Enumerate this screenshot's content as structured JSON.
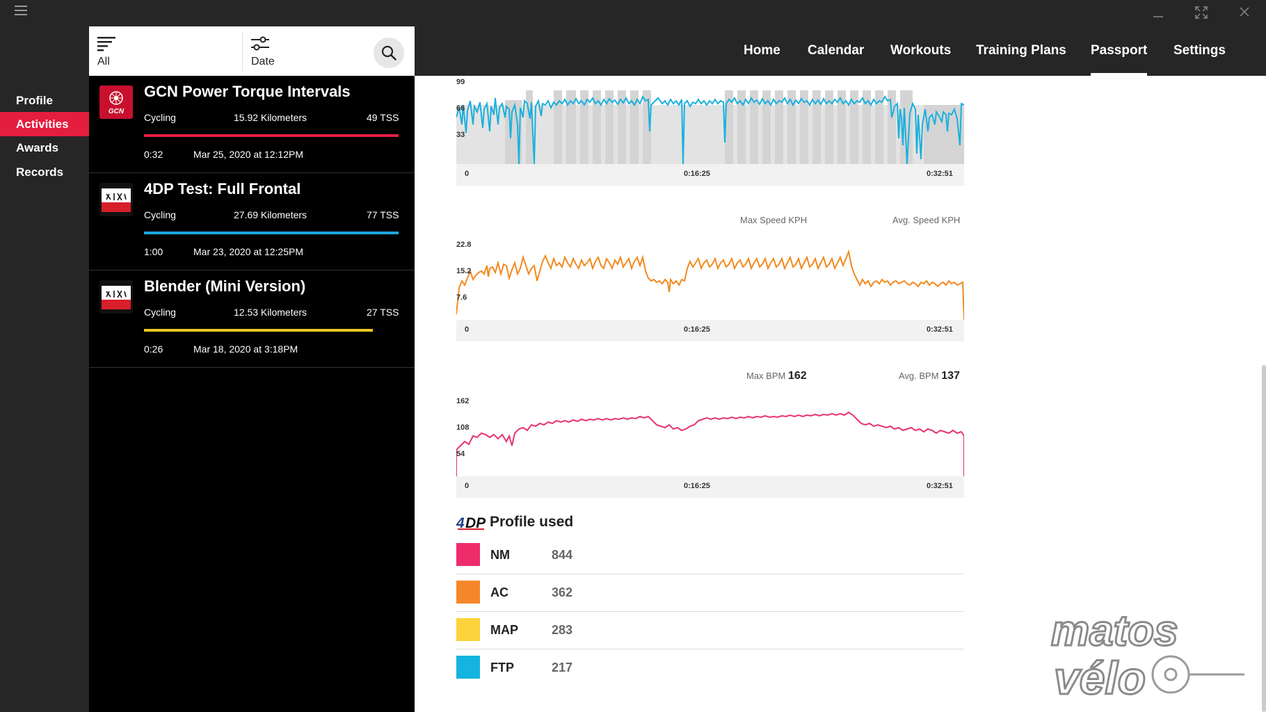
{
  "nav": {
    "items": [
      {
        "label": "Home",
        "active": false
      },
      {
        "label": "Calendar",
        "active": false
      },
      {
        "label": "Workouts",
        "active": false
      },
      {
        "label": "Training Plans",
        "active": false
      },
      {
        "label": "Passport",
        "active": true
      },
      {
        "label": "Settings",
        "active": false
      }
    ]
  },
  "sidebar": {
    "items": [
      {
        "label": "Profile",
        "active": false
      },
      {
        "label": "Activities",
        "active": true
      },
      {
        "label": "Awards",
        "active": false
      },
      {
        "label": "Records",
        "active": false
      }
    ]
  },
  "list_header": {
    "filter_label": "All",
    "sort_label": "Date",
    "search_icon": "search-icon"
  },
  "activities": [
    {
      "title": "GCN Power Torque Intervals",
      "sport": "Cycling",
      "distance": "15.92 Kilometers",
      "tss": "49 TSS",
      "duration": "0:32",
      "date": "Mar 25, 2020 at 12:12PM",
      "bar_color": "#e41e3f",
      "bar_fraction": 1.0,
      "icon": "gcn-logo-icon"
    },
    {
      "title": "4DP Test: Full Frontal",
      "sport": "Cycling",
      "distance": "27.69 Kilometers",
      "tss": "77 TSS",
      "duration": "1:00",
      "date": "Mar 23, 2020 at 12:25PM",
      "bar_color": "#1ea7e1",
      "bar_fraction": 1.0,
      "icon": "sufferfest-logo-icon"
    },
    {
      "title": "Blender (Mini Version)",
      "sport": "Cycling",
      "distance": "12.53 Kilometers",
      "tss": "27 TSS",
      "duration": "0:26",
      "date": "Mar 18, 2020 at 3:18PM",
      "bar_color": "#f2c81e",
      "bar_fraction": 0.9,
      "icon": "sufferfest-logo-icon"
    }
  ],
  "charts": {
    "cadence": {
      "y_ticks": [
        "99",
        "66",
        "33"
      ],
      "x_ticks": [
        "0",
        "0:16:25",
        "0:32:51"
      ],
      "color": "#1ab0dd"
    },
    "speed": {
      "max_label": "Max Speed KPH",
      "avg_label": "Avg. Speed KPH",
      "y_ticks": [
        "22.8",
        "15.2",
        "7.6"
      ],
      "x_ticks": [
        "0",
        "0:16:25",
        "0:32:51"
      ],
      "color": "#f28a1e"
    },
    "heart_rate": {
      "max_label": "Max BPM",
      "max_value": "162",
      "avg_label": "Avg. BPM",
      "avg_value": "137",
      "y_ticks": [
        "162",
        "108",
        "54"
      ],
      "x_ticks": [
        "0",
        "0:16:25",
        "0:32:51"
      ],
      "color": "#e8336f"
    }
  },
  "profile": {
    "logo": "4DP",
    "title": "Profile used",
    "items": [
      {
        "code": "NM",
        "value": "844",
        "color": "#ee2c6c"
      },
      {
        "code": "AC",
        "value": "362",
        "color": "#f5872a"
      },
      {
        "code": "MAP",
        "value": "283",
        "color": "#fdd23b"
      },
      {
        "code": "FTP",
        "value": "217",
        "color": "#14b3e0"
      }
    ]
  },
  "watermark": "matos vélo"
}
